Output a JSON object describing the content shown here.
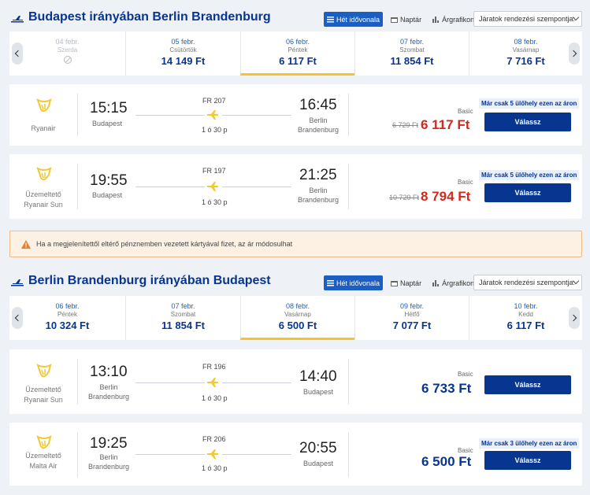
{
  "outbound": {
    "title": "Budapest irányában Berlin Brandenburg",
    "tabs": [
      "Hét idővonala",
      "Naptár",
      "Árgrafikon"
    ],
    "sort_placeholder": "Járatok rendezési szempontja:",
    "dates": [
      {
        "date": "04 febr.",
        "weekday": "Szerda",
        "price": "",
        "disabled": true
      },
      {
        "date": "05 febr.",
        "weekday": "Csütörtök",
        "price": "14 149 Ft"
      },
      {
        "date": "06 febr.",
        "weekday": "Péntek",
        "price": "6 117 Ft",
        "selected": true
      },
      {
        "date": "07 febr.",
        "weekday": "Szombat",
        "price": "11 854 Ft"
      },
      {
        "date": "08 febr.",
        "weekday": "Vasárnap",
        "price": "7 716 Ft"
      }
    ],
    "flights": [
      {
        "airline": [
          "Ryanair"
        ],
        "flight_no": "FR 207",
        "dep_time": "15:15",
        "dep_city": [
          "Budapest"
        ],
        "arr_time": "16:45",
        "arr_city": [
          "Berlin",
          "Brandenburg"
        ],
        "duration": "1 ó 30 p",
        "fare": "Basic",
        "old_price": "6 729 Ft",
        "price": "6 117 Ft",
        "badge": "Már csak 5 ülőhely ezen az áron",
        "button": "Válassz"
      },
      {
        "airline": [
          "Üzemeltető",
          "Ryanair Sun"
        ],
        "flight_no": "FR 197",
        "dep_time": "19:55",
        "dep_city": [
          "Budapest"
        ],
        "arr_time": "21:25",
        "arr_city": [
          "Berlin",
          "Brandenburg"
        ],
        "duration": "1 ó 30 p",
        "fare": "Basic",
        "old_price": "10 729 Ft",
        "price": "8 794 Ft",
        "badge": "Már csak 5 ülőhely ezen az áron",
        "button": "Válassz"
      }
    ]
  },
  "warning": "Ha a megjelenítettől eltérő pénznemben vezetett kártyával fizet, az ár módosulhat",
  "inbound": {
    "title": "Berlin Brandenburg irányában Budapest",
    "tabs": [
      "Hét idővonala",
      "Naptár",
      "Árgrafikon"
    ],
    "sort_placeholder": "Járatok rendezési szempontja:",
    "dates": [
      {
        "date": "06 febr.",
        "weekday": "Péntek",
        "price": "10 324 Ft"
      },
      {
        "date": "07 febr.",
        "weekday": "Szombat",
        "price": "11 854 Ft"
      },
      {
        "date": "08 febr.",
        "weekday": "Vasárnap",
        "price": "6 500 Ft",
        "selected": true
      },
      {
        "date": "09 febr.",
        "weekday": "Hétfő",
        "price": "7 077 Ft"
      },
      {
        "date": "10 febr.",
        "weekday": "Kedd",
        "price": "6 117 Ft"
      }
    ],
    "flights": [
      {
        "airline": [
          "Üzemeltető",
          "Ryanair Sun"
        ],
        "flight_no": "FR 196",
        "dep_time": "13:10",
        "dep_city": [
          "Berlin",
          "Brandenburg"
        ],
        "arr_time": "14:40",
        "arr_city": [
          "Budapest"
        ],
        "duration": "1 ó 30 p",
        "fare": "Basic",
        "old_price": "",
        "price": "6 733 Ft",
        "badge": "",
        "button": "Válassz"
      },
      {
        "airline": [
          "Üzemeltető",
          "Malta Air"
        ],
        "flight_no": "FR 206",
        "dep_time": "19:25",
        "dep_city": [
          "Berlin",
          "Brandenburg"
        ],
        "arr_time": "20:55",
        "arr_city": [
          "Budapest"
        ],
        "duration": "1 ó 30 p",
        "fare": "Basic",
        "old_price": "",
        "price": "6 500 Ft",
        "badge": "Már csak 3 ülőhely ezen az áron",
        "button": "Válassz"
      }
    ]
  },
  "colors": {
    "primary": "#073590",
    "accent": "#f5c425",
    "discount": "#d2291d",
    "tab_active": "#1c5fc4"
  },
  "icons": [
    "plane-icon",
    "list-icon",
    "calendar-icon",
    "bar-chart-icon",
    "chevron-left-icon",
    "chevron-right-icon",
    "ryanair-harp-logo",
    "warning-icon",
    "unavailable-icon"
  ]
}
